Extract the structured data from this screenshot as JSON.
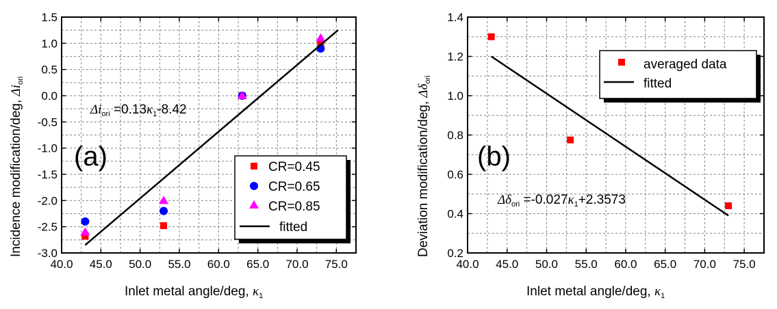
{
  "chart_data": [
    {
      "type": "scatter",
      "panel_label": "(a)",
      "xlabel": "Inlet metal angle/deg,",
      "xlabel_symbol": "κ",
      "xlabel_subscript": "1",
      "ylabel": "Incidence modification/deg,",
      "ylabel_symbol": "Δi",
      "ylabel_subscript": "ori",
      "xlim": [
        40,
        77.5
      ],
      "ylim": [
        -3.0,
        1.5
      ],
      "x_ticks": [
        40,
        45,
        50,
        55,
        60,
        65,
        70,
        75
      ],
      "x_tick_labels": [
        "40.0",
        "45.0",
        "50.0",
        "55.0",
        "60.0",
        "65.0",
        "70.0",
        "75.0"
      ],
      "y_ticks": [
        -3.0,
        -2.5,
        -2.0,
        -1.5,
        -1.0,
        -0.5,
        0.0,
        0.5,
        1.0,
        1.5
      ],
      "y_tick_labels": [
        "-3.0",
        "-2.5",
        "-2.0",
        "-1.5",
        "-1.0",
        "-0.5",
        "0.0",
        "0.5",
        "1.0",
        "1.5"
      ],
      "grid": true,
      "legend_position": "bottom-right",
      "series": [
        {
          "name": "CR=0.45",
          "marker": "square",
          "color": "#ff0000",
          "x": [
            43,
            53,
            63,
            73
          ],
          "y": [
            -2.68,
            -2.48,
            0.0,
            1.0
          ]
        },
        {
          "name": "CR=0.65",
          "marker": "circle",
          "color": "#0000ff",
          "x": [
            43,
            53,
            63,
            73
          ],
          "y": [
            -2.4,
            -2.2,
            0.0,
            0.9
          ]
        },
        {
          "name": "CR=0.85",
          "marker": "triangle",
          "color": "#ff00ff",
          "x": [
            43,
            53,
            63,
            73
          ],
          "y": [
            -2.6,
            -2.0,
            0.0,
            1.1
          ]
        },
        {
          "name": "fitted",
          "marker": "line",
          "color": "#000000",
          "x": [
            43,
            75.2
          ],
          "y": [
            -2.85,
            1.25
          ]
        }
      ],
      "equation": {
        "lhs": "Δi",
        "lhs_sub": "ori",
        "rhs_a": " =0.13",
        "rhs_sym": "κ",
        "rhs_sub": "1",
        "rhs_b": "-8.42"
      }
    },
    {
      "type": "scatter",
      "panel_label": "(b)",
      "xlabel": "Inlet metal angle/deg,",
      "xlabel_symbol": "κ",
      "xlabel_subscript": "1",
      "ylabel": "Deviation modification/deg,",
      "ylabel_symbol": "Δδ",
      "ylabel_subscript": "ori",
      "xlim": [
        40,
        77.5
      ],
      "ylim": [
        0.2,
        1.4
      ],
      "x_ticks": [
        40,
        45,
        50,
        55,
        60,
        65,
        70,
        75
      ],
      "x_tick_labels": [
        "40.0",
        "45.0",
        "50.0",
        "55.0",
        "60.0",
        "65.0",
        "70.0",
        "75.0"
      ],
      "y_ticks": [
        0.2,
        0.4,
        0.6,
        0.8,
        1.0,
        1.2,
        1.4
      ],
      "y_tick_labels": [
        "0.2",
        "0.4",
        "0.6",
        "0.8",
        "1.0",
        "1.2",
        "1.4"
      ],
      "grid": true,
      "legend_position": "top-right",
      "series": [
        {
          "name": "averaged data",
          "marker": "square",
          "color": "#ff0000",
          "x": [
            43,
            53,
            73
          ],
          "y": [
            1.3,
            0.775,
            0.44
          ]
        },
        {
          "name": "fitted",
          "marker": "line",
          "color": "#000000",
          "x": [
            43,
            73
          ],
          "y": [
            1.2,
            0.39
          ]
        }
      ],
      "equation": {
        "lhs": "Δδ",
        "lhs_sub": "ori",
        "rhs_a": " =-0.027",
        "rhs_sym": "κ",
        "rhs_sub": "1",
        "rhs_b": "+2.3573"
      }
    }
  ]
}
